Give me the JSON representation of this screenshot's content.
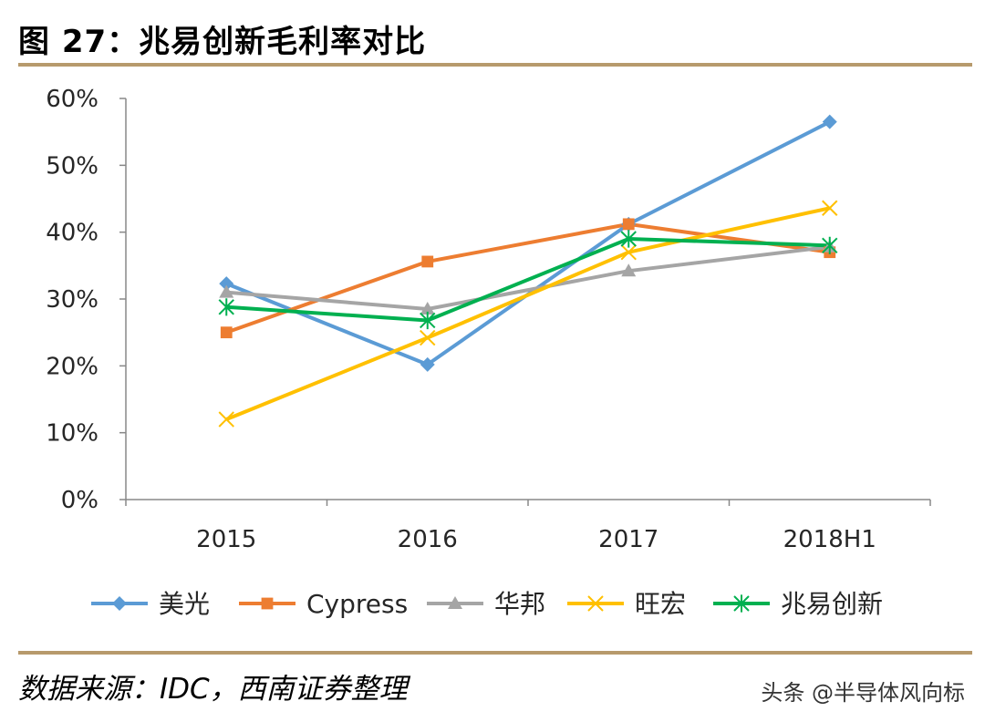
{
  "figure": {
    "title": "图 27：兆易创新毛利率对比",
    "source": "数据来源：IDC，西南证券整理",
    "watermark": "头条 @半导体风向标"
  },
  "chart_data": {
    "type": "line",
    "title": "图 27：兆易创新毛利率对比",
    "xlabel": "",
    "ylabel": "",
    "categories": [
      "2015",
      "2016",
      "2017",
      "2018H1"
    ],
    "ylim": [
      0,
      60
    ],
    "yticks": [
      0,
      10,
      20,
      30,
      40,
      50,
      60
    ],
    "ytick_labels": [
      "0%",
      "10%",
      "20%",
      "30%",
      "40%",
      "50%",
      "60%"
    ],
    "grid": false,
    "legend_position": "bottom",
    "series": [
      {
        "name": "美光",
        "values": [
          32.3,
          20.2,
          41.2,
          56.5
        ],
        "color": "#5b9bd5",
        "marker": "diamond"
      },
      {
        "name": "Cypress",
        "values": [
          25.0,
          35.6,
          41.2,
          37.0
        ],
        "color": "#ed7d31",
        "marker": "square"
      },
      {
        "name": "华邦",
        "values": [
          31.0,
          28.5,
          34.2,
          37.8
        ],
        "color": "#a5a5a5",
        "marker": "triangle"
      },
      {
        "name": "旺宏",
        "values": [
          12.0,
          24.2,
          37.0,
          43.6
        ],
        "color": "#ffc000",
        "marker": "x"
      },
      {
        "name": "兆易创新",
        "values": [
          28.8,
          26.8,
          39.0,
          38.0
        ],
        "color": "#00b050",
        "marker": "star"
      }
    ]
  }
}
